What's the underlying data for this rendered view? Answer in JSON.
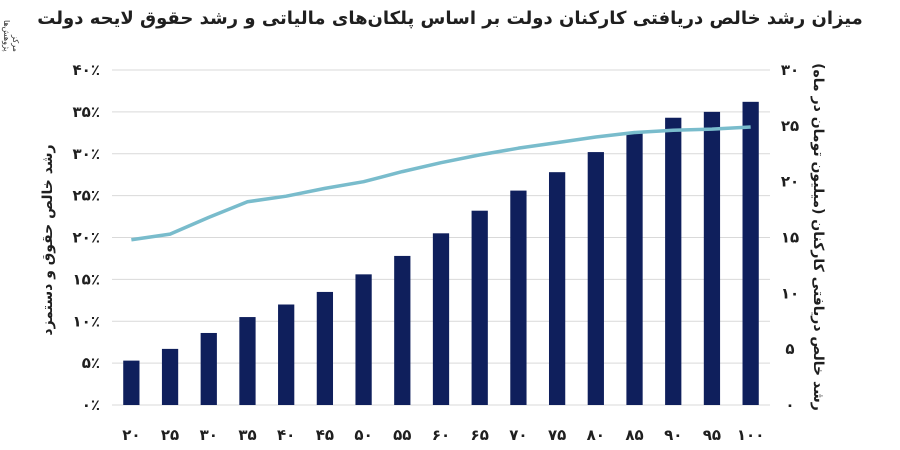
{
  "title": "میزان رشد خالص دریافتی کارکنان دولت بر اساس پلکان‌های مالیاتی و رشد حقوق لایحه دولت",
  "watermark": "مرکز پژوهش‌ها",
  "chart_data": {
    "type": "bar",
    "categories": [
      "۲۰",
      "۲۵",
      "۳۰",
      "۳۵",
      "۴۰",
      "۴۵",
      "۵۰",
      "۵۵",
      "۶۰",
      "۶۵",
      "۷۰",
      "۷۵",
      "۸۰",
      "۸۵",
      "۹۰",
      "۹۵",
      "۱۰۰"
    ],
    "series": [
      {
        "type": "bar",
        "axis": "left",
        "values": [
          5.3,
          6.7,
          8.6,
          10.5,
          12.0,
          13.5,
          15.6,
          17.8,
          20.5,
          23.2,
          25.6,
          27.8,
          30.2,
          32.5,
          34.3,
          35.0,
          36.2
        ],
        "color": "#0f1f5c"
      },
      {
        "type": "line",
        "axis": "right",
        "values": [
          14.8,
          15.3,
          16.8,
          18.2,
          18.7,
          19.4,
          20.0,
          20.9,
          21.7,
          22.4,
          23.0,
          23.5,
          24.0,
          24.4,
          24.6,
          24.7,
          24.9
        ],
        "color": "#79bccc"
      }
    ],
    "ylabel_left": "رشد خالص حقوق و دستمزد",
    "ylabel_right": "رشد خالص دریافتی کارکنان (میلیون تومان در ماه)",
    "ylim_left": [
      0,
      40
    ],
    "yticks_left": [
      "۰٪",
      "۵٪",
      "۱۰٪",
      "۱۵٪",
      "۲۰٪",
      "۲۵٪",
      "۳۰٪",
      "۳۵٪",
      "۴۰٪"
    ],
    "ylim_right": [
      0,
      30
    ],
    "yticks_right": [
      "۰",
      "۵",
      "۱۰",
      "۱۵",
      "۲۰",
      "۲۵",
      "۳۰"
    ],
    "grid": true,
    "legend": "none"
  }
}
